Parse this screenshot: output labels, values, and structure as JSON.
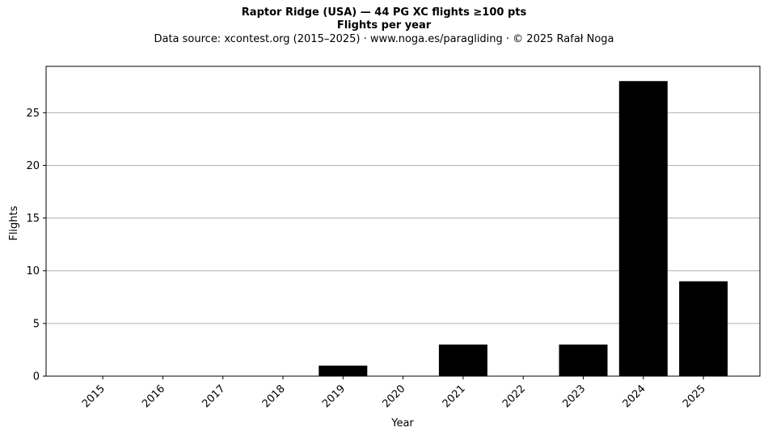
{
  "title": "Raptor Ridge (USA)  —  44 PG XC flights ≥100 pts",
  "subtitle": "Flights per year",
  "source_line": "Data source: xcontest.org (2015–2025)  ·  www.noga.es/paragliding  ·  © 2025 Rafał Noga",
  "chart_data": {
    "type": "bar",
    "categories": [
      "2015",
      "2016",
      "2017",
      "2018",
      "2019",
      "2020",
      "2021",
      "2022",
      "2023",
      "2024",
      "2025"
    ],
    "values": [
      0,
      0,
      0,
      0,
      1,
      0,
      3,
      0,
      3,
      28,
      9
    ],
    "xlabel": "Year",
    "ylabel": "Flights",
    "ylim": [
      0,
      29.4
    ],
    "yticks": [
      0,
      5,
      10,
      15,
      20,
      25
    ],
    "grid": "horizontal",
    "bar_color": "#000000",
    "grid_color": "#b0b0b0"
  }
}
